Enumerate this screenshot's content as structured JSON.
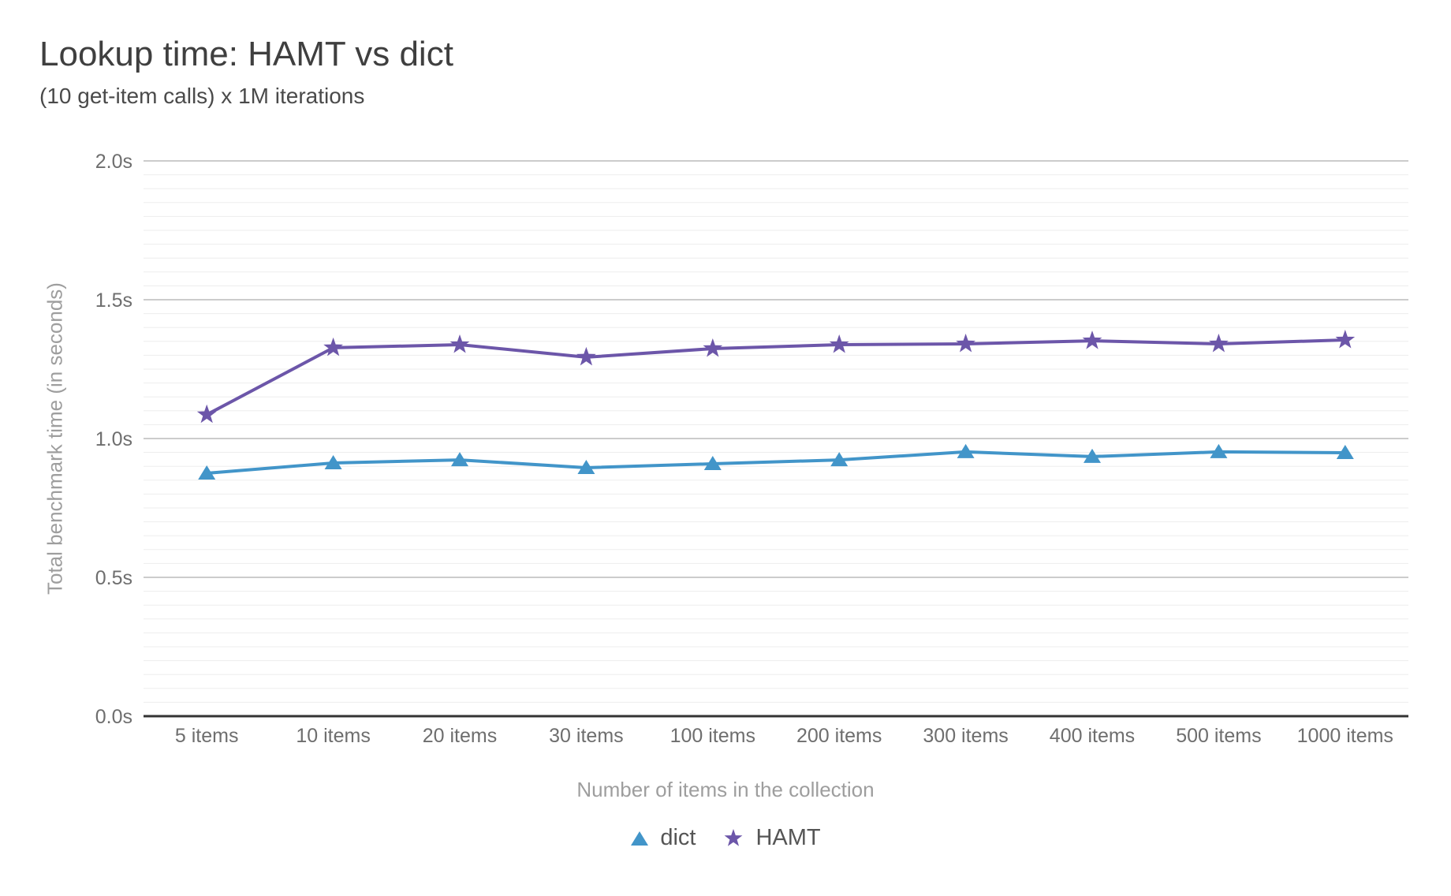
{
  "chart_data": {
    "type": "line",
    "title": "Lookup time: HAMT vs dict",
    "subtitle": "(10 get-item calls) x 1M iterations",
    "xlabel": "Number of items in the collection",
    "ylabel": "Total benchmark time (in seconds)",
    "categories": [
      "5 items",
      "10 items",
      "20 items",
      "30 items",
      "100 items",
      "200 items",
      "300 items",
      "400 items",
      "500 items",
      "1000 items"
    ],
    "series": [
      {
        "name": "dict",
        "marker": "triangle",
        "color": "#4295c9",
        "values": [
          0.875,
          0.912,
          0.923,
          0.895,
          0.909,
          0.923,
          0.952,
          0.935,
          0.952,
          0.949
        ]
      },
      {
        "name": "HAMT",
        "marker": "star",
        "color": "#6c56a9",
        "values": [
          1.086,
          1.327,
          1.338,
          1.293,
          1.324,
          1.338,
          1.341,
          1.352,
          1.341,
          1.355
        ]
      }
    ],
    "ylim": [
      0,
      2
    ],
    "y_ticks": [
      {
        "value": 0,
        "label": "0.0s"
      },
      {
        "value": 0.5,
        "label": "0.5s"
      },
      {
        "value": 1,
        "label": "1.0s"
      },
      {
        "value": 1.5,
        "label": "1.5s"
      },
      {
        "value": 2,
        "label": "2.0s"
      }
    ],
    "y_minor_step": 0.05,
    "grid": {
      "on": true,
      "major_color": "#cccccc",
      "minor_color": "#ededed",
      "baseline_color": "#333333"
    },
    "legend_position": "bottom",
    "text_colors": {
      "title": "#3f3f3f",
      "subtitle": "#4a4a4a",
      "tick": "#6e6e6e",
      "axis_title": "#9e9e9e",
      "legend": "#555555"
    }
  }
}
